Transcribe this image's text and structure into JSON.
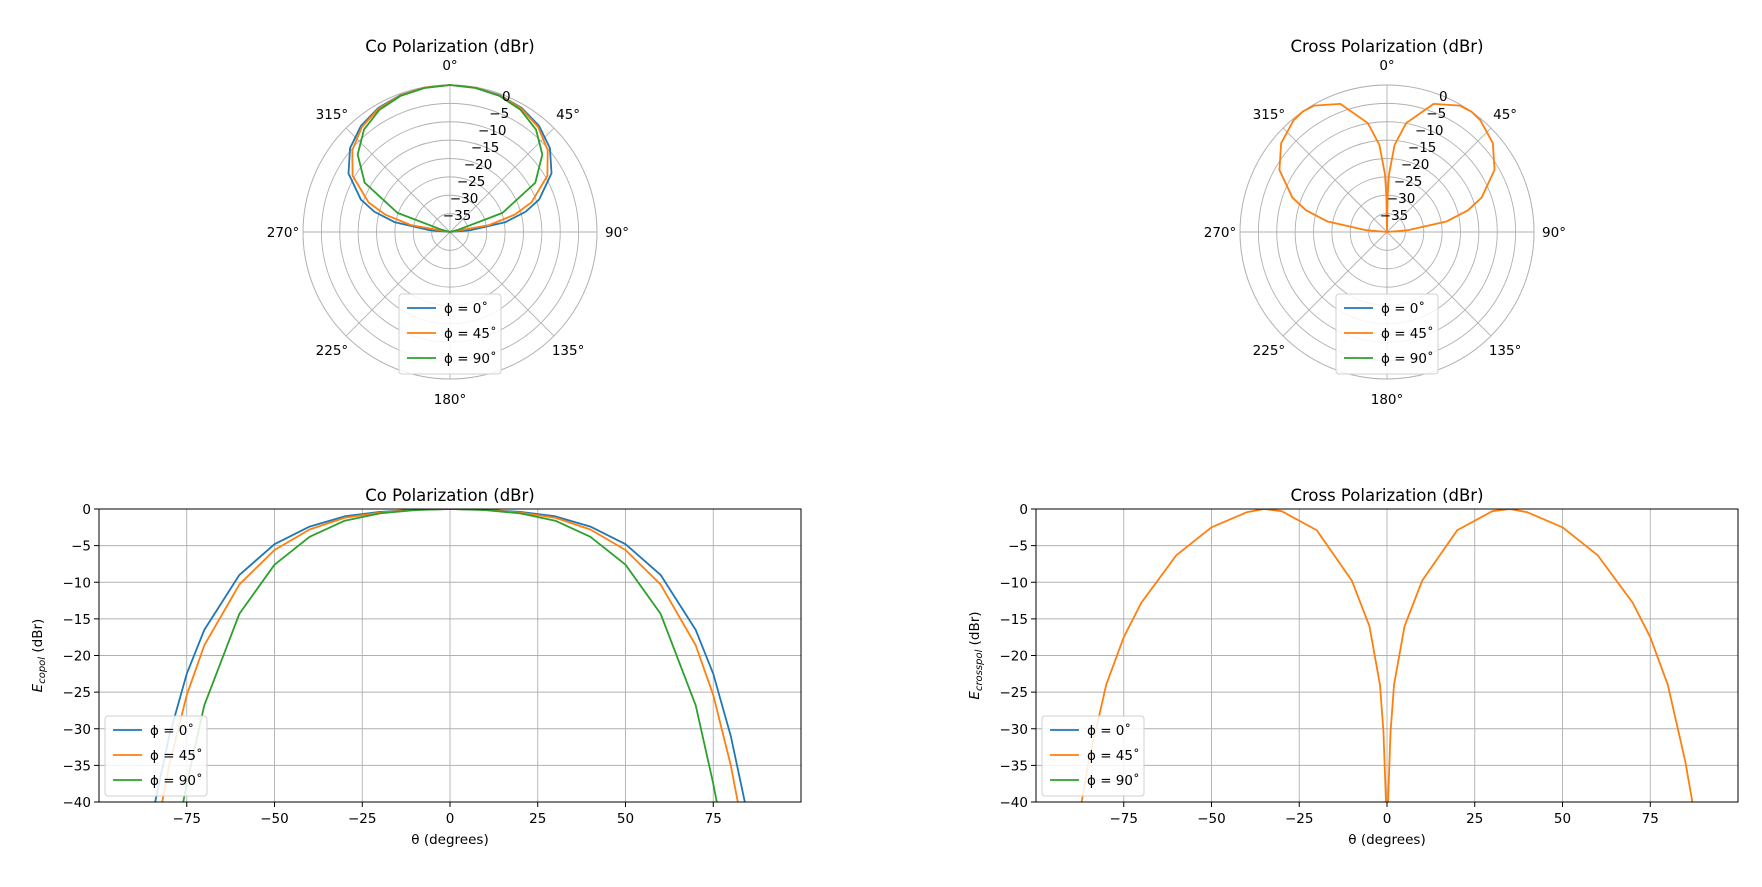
{
  "chart_data": [
    {
      "id": "copol-polar",
      "type": "polar-line",
      "title": "Co Polarization (dBr)",
      "angle_ticks": [
        "0°",
        "45°",
        "90°",
        "135°",
        "180°",
        "225°",
        "270°",
        "315°"
      ],
      "radial_ticks": [
        "0",
        "−5",
        "−10",
        "−15",
        "−20",
        "−25",
        "−30",
        "−35"
      ],
      "rlim": [
        -40,
        0
      ],
      "legend": [
        "ϕ = 0˚",
        "ϕ = 45˚",
        "ϕ = 90˚"
      ],
      "series_colors": [
        "#1f77b4",
        "#ff7f0e",
        "#2ca02c"
      ],
      "series": [
        {
          "name": "ϕ = 0˚",
          "theta": [
            -90,
            -85,
            -80,
            -75,
            -70,
            -60,
            -50,
            -40,
            -30,
            -20,
            -10,
            0,
            10,
            20,
            30,
            40,
            50,
            60,
            70,
            75,
            80,
            85,
            90
          ],
          "values": [
            -40,
            -34.5,
            -24.8,
            -18.7,
            -14.2,
            -8.1,
            -4.5,
            -2.3,
            -1.0,
            -0.4,
            -0.1,
            0,
            -0.1,
            -0.4,
            -1.0,
            -2.3,
            -4.5,
            -8.1,
            -14.2,
            -18.7,
            -24.8,
            -34.5,
            -40
          ]
        },
        {
          "name": "ϕ = 45˚",
          "theta": [
            -90,
            -85,
            -80,
            -75,
            -70,
            -60,
            -50,
            -40,
            -30,
            -20,
            -10,
            0,
            10,
            20,
            30,
            40,
            50,
            60,
            70,
            75,
            80,
            85,
            90
          ],
          "values": [
            -40,
            -40,
            -29.2,
            -21.8,
            -16.4,
            -9.4,
            -5.3,
            -2.7,
            -1.2,
            -0.5,
            -0.1,
            0,
            -0.1,
            -0.5,
            -1.2,
            -2.7,
            -5.3,
            -9.4,
            -16.4,
            -21.8,
            -29.2,
            -40,
            -40
          ]
        },
        {
          "name": "ϕ = 90˚",
          "theta": [
            -90,
            -85,
            -80,
            -75,
            -70,
            -60,
            -50,
            -40,
            -30,
            -20,
            -10,
            0,
            10,
            20,
            30,
            40,
            50,
            60,
            70,
            75,
            80,
            85,
            90
          ],
          "values": [
            -40,
            -40,
            -40,
            -37.8,
            -24.8,
            -13.2,
            -7.2,
            -3.6,
            -1.6,
            -0.6,
            -0.2,
            0,
            -0.2,
            -0.6,
            -1.6,
            -3.6,
            -7.2,
            -13.2,
            -24.8,
            -37.8,
            -40,
            -40,
            -40
          ]
        }
      ]
    },
    {
      "id": "xpol-polar",
      "type": "polar-line",
      "title": "Cross Polarization (dBr)",
      "angle_ticks": [
        "0°",
        "45°",
        "90°",
        "135°",
        "180°",
        "225°",
        "270°",
        "315°"
      ],
      "radial_ticks": [
        "0",
        "−5",
        "−10",
        "−15",
        "−20",
        "−25",
        "−30",
        "−35"
      ],
      "rlim": [
        -40,
        0
      ],
      "legend": [
        "ϕ = 0˚",
        "ϕ = 45˚",
        "ϕ = 90˚"
      ],
      "series_colors": [
        "#1f77b4",
        "#ff7f0e",
        "#2ca02c"
      ],
      "series": [
        {
          "name": "ϕ = 45˚",
          "theta": [
            -90,
            -87,
            -85,
            -80,
            -75,
            -70,
            -60,
            -50,
            -40,
            -35,
            -30,
            -20,
            -10,
            -5,
            -2,
            -1,
            0,
            1,
            2,
            5,
            10,
            20,
            30,
            35,
            40,
            50,
            60,
            70,
            75,
            80,
            85,
            87,
            90
          ],
          "values": [
            -40,
            -40,
            -34.2,
            -23.6,
            -17.2,
            -12.6,
            -6.2,
            -2.4,
            -0.4,
            0,
            -0.3,
            -2.9,
            -9.9,
            -16.2,
            -24.3,
            -30.5,
            -40,
            -30.5,
            -24.3,
            -16.2,
            -9.9,
            -2.9,
            -0.3,
            0,
            -0.4,
            -2.4,
            -6.2,
            -12.6,
            -17.2,
            -23.6,
            -34.2,
            -40,
            -40
          ]
        }
      ]
    },
    {
      "id": "copol-cart",
      "type": "line",
      "title": "Co Polarization (dBr)",
      "xlabel": "θ (degrees)",
      "ylabel": "E",
      "ylabel_sub": "copol",
      "ylabel_unit": " (dBr)",
      "xticks": [
        "−75",
        "−50",
        "−25",
        "0",
        "25",
        "50",
        "75"
      ],
      "yticks": [
        "0",
        "−5",
        "−10",
        "−15",
        "−20",
        "−25",
        "−30",
        "−35",
        "−40"
      ],
      "xlim": [
        -100,
        100
      ],
      "ylim": [
        -40,
        0
      ],
      "legend": [
        "ϕ = 0˚",
        "ϕ = 45˚",
        "ϕ = 90˚"
      ],
      "series_colors": [
        "#1f77b4",
        "#ff7f0e",
        "#2ca02c"
      ],
      "series": [
        {
          "name": "ϕ = 0˚",
          "x": [
            -84,
            -80,
            -75,
            -70,
            -60,
            -50,
            -40,
            -30,
            -20,
            -10,
            0,
            10,
            20,
            30,
            40,
            50,
            60,
            70,
            75,
            80,
            84
          ],
          "y": [
            -40,
            -31.0,
            -22.5,
            -16.5,
            -9.0,
            -4.8,
            -2.4,
            -1.0,
            -0.4,
            -0.1,
            0,
            -0.1,
            -0.4,
            -1.0,
            -2.4,
            -4.8,
            -9.0,
            -16.5,
            -22.5,
            -31.0,
            -40
          ]
        },
        {
          "name": "ϕ = 45˚",
          "x": [
            -82,
            -80,
            -75,
            -70,
            -60,
            -50,
            -40,
            -30,
            -20,
            -10,
            0,
            10,
            20,
            30,
            40,
            50,
            60,
            70,
            75,
            80,
            82
          ],
          "y": [
            -40,
            -35.0,
            -25.4,
            -18.6,
            -10.3,
            -5.6,
            -2.8,
            -1.2,
            -0.5,
            -0.1,
            0,
            -0.1,
            -0.5,
            -1.2,
            -2.8,
            -5.6,
            -10.3,
            -18.6,
            -25.4,
            -35.0,
            -40
          ]
        },
        {
          "name": "ϕ = 90˚",
          "x": [
            -76,
            -75,
            -70,
            -60,
            -50,
            -40,
            -30,
            -20,
            -10,
            0,
            10,
            20,
            30,
            40,
            50,
            60,
            70,
            75,
            76
          ],
          "y": [
            -40,
            -37.5,
            -26.8,
            -14.3,
            -7.6,
            -3.8,
            -1.6,
            -0.6,
            -0.15,
            0,
            -0.15,
            -0.6,
            -1.6,
            -3.8,
            -7.6,
            -14.3,
            -26.8,
            -37.5,
            -40
          ]
        }
      ]
    },
    {
      "id": "xpol-cart",
      "type": "line",
      "title": "Cross Polarization (dBr)",
      "xlabel": "θ (degrees)",
      "ylabel": "E",
      "ylabel_sub": "crosspol",
      "ylabel_unit": " (dBr)",
      "xticks": [
        "−75",
        "−50",
        "−25",
        "0",
        "25",
        "50",
        "75"
      ],
      "yticks": [
        "0",
        "−5",
        "−10",
        "−15",
        "−20",
        "−25",
        "−30",
        "−35",
        "−40"
      ],
      "xlim": [
        -100,
        100
      ],
      "ylim": [
        -40,
        0
      ],
      "legend": [
        "ϕ = 0˚",
        "ϕ = 45˚",
        "ϕ = 90˚"
      ],
      "series_colors": [
        "#1f77b4",
        "#ff7f0e",
        "#2ca02c"
      ],
      "series": [
        {
          "name": "ϕ = 45˚",
          "x": [
            -87,
            -85,
            -80,
            -75,
            -70,
            -60,
            -50,
            -40,
            -35,
            -30,
            -20,
            -10,
            -5,
            -2,
            -1,
            -0.3
          ],
          "y": [
            -40,
            -34.5,
            -24.0,
            -17.5,
            -12.8,
            -6.3,
            -2.5,
            -0.45,
            0,
            -0.3,
            -2.9,
            -9.8,
            -16.0,
            -24.0,
            -30.5,
            -40
          ]
        },
        {
          "name": "ϕ = 45˚",
          "x": [
            0.3,
            1,
            2,
            5,
            10,
            20,
            30,
            35,
            40,
            50,
            60,
            70,
            75,
            80,
            85,
            87
          ],
          "y": [
            -40,
            -30.5,
            -24.0,
            -16.0,
            -9.8,
            -2.9,
            -0.3,
            0,
            -0.45,
            -2.5,
            -6.3,
            -12.8,
            -17.5,
            -24.0,
            -34.5,
            -40
          ]
        }
      ]
    }
  ]
}
